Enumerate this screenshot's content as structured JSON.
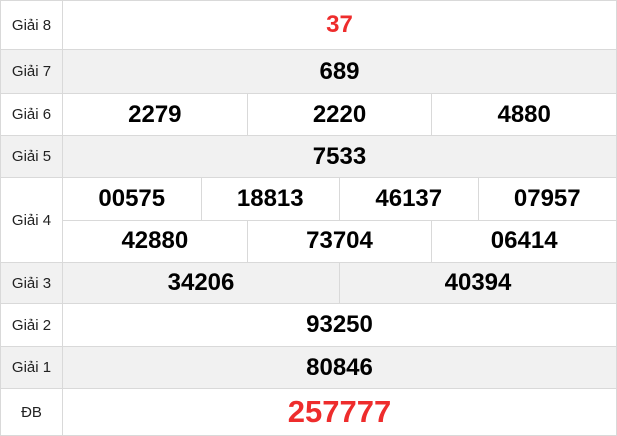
{
  "table": {
    "rows": [
      {
        "label": "Giải 8",
        "cells": [
          "37"
        ],
        "accent": true
      },
      {
        "label": "Giải 7",
        "cells": [
          "689"
        ]
      },
      {
        "label": "Giải 6",
        "cells": [
          "2279",
          "2220",
          "4880"
        ]
      },
      {
        "label": "Giải 5",
        "cells": [
          "7533"
        ]
      },
      {
        "label": "Giải 4",
        "sub_rows": [
          [
            "00575",
            "18813",
            "46137",
            "07957"
          ],
          [
            "42880",
            "73704",
            "06414"
          ]
        ]
      },
      {
        "label": "Giải 3",
        "cells": [
          "34206",
          "40394"
        ]
      },
      {
        "label": "Giải 2",
        "cells": [
          "93250"
        ]
      },
      {
        "label": "Giải 1",
        "cells": [
          "80846"
        ]
      },
      {
        "label": "ĐB",
        "cells": [
          "257777"
        ],
        "accent": true
      }
    ]
  },
  "colors": {
    "accent_red": "#ee2c2c",
    "row_alt_bg": "#f1f1f1",
    "border": "#d9d9d9",
    "number_color": "#000000",
    "label_color": "#222222"
  }
}
